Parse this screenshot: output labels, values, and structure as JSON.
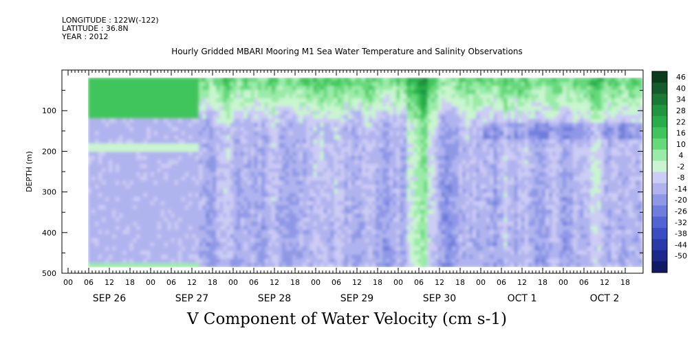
{
  "header": {
    "longitude": "LONGITUDE : 122W(-122)",
    "latitude": "LATITUDE : 36.8N",
    "year": "YEAR : 2012"
  },
  "chart_data": {
    "type": "heatmap",
    "title": "Hourly Gridded MBARI Mooring M1 Sea Water Temperature and Salinity Observations",
    "xlabel": "V Component of Water Velocity (cm s-1)",
    "ylabel": "DEPTH (m)",
    "ylim": [
      500,
      0
    ],
    "y_ticks": [
      100,
      200,
      300,
      400,
      500
    ],
    "x_hour_ticks": [
      "00",
      "06",
      "12",
      "18",
      "00",
      "06",
      "12",
      "18",
      "00",
      "06",
      "12",
      "18",
      "00",
      "06",
      "12",
      "18",
      "00",
      "06",
      "12",
      "18",
      "00",
      "06",
      "12",
      "18",
      "00",
      "06",
      "12",
      "18"
    ],
    "x_day_labels": [
      "SEP 26",
      "SEP 27",
      "SEP 28",
      "SEP 29",
      "SEP 30",
      "OCT  1",
      "OCT  2"
    ],
    "colorbar": {
      "levels": [
        46,
        40,
        34,
        28,
        22,
        16,
        10,
        4,
        -2,
        -8,
        -14,
        -20,
        -26,
        -32,
        -38,
        -44,
        -50
      ],
      "colors": [
        "#0b3d1a",
        "#145c2a",
        "#1a7a35",
        "#1f9640",
        "#27ad4a",
        "#3fc55c",
        "#66d97b",
        "#9aeba8",
        "#c9f5cf",
        "#ccccf4",
        "#b0b4ee",
        "#8f98e6",
        "#6f7ddc",
        "#5064d4",
        "#3a4ec4",
        "#2a3aaa",
        "#1c288c",
        "#111a66"
      ]
    },
    "data_start": "SEP 26 06",
    "data_end": "OCT  2 22"
  }
}
